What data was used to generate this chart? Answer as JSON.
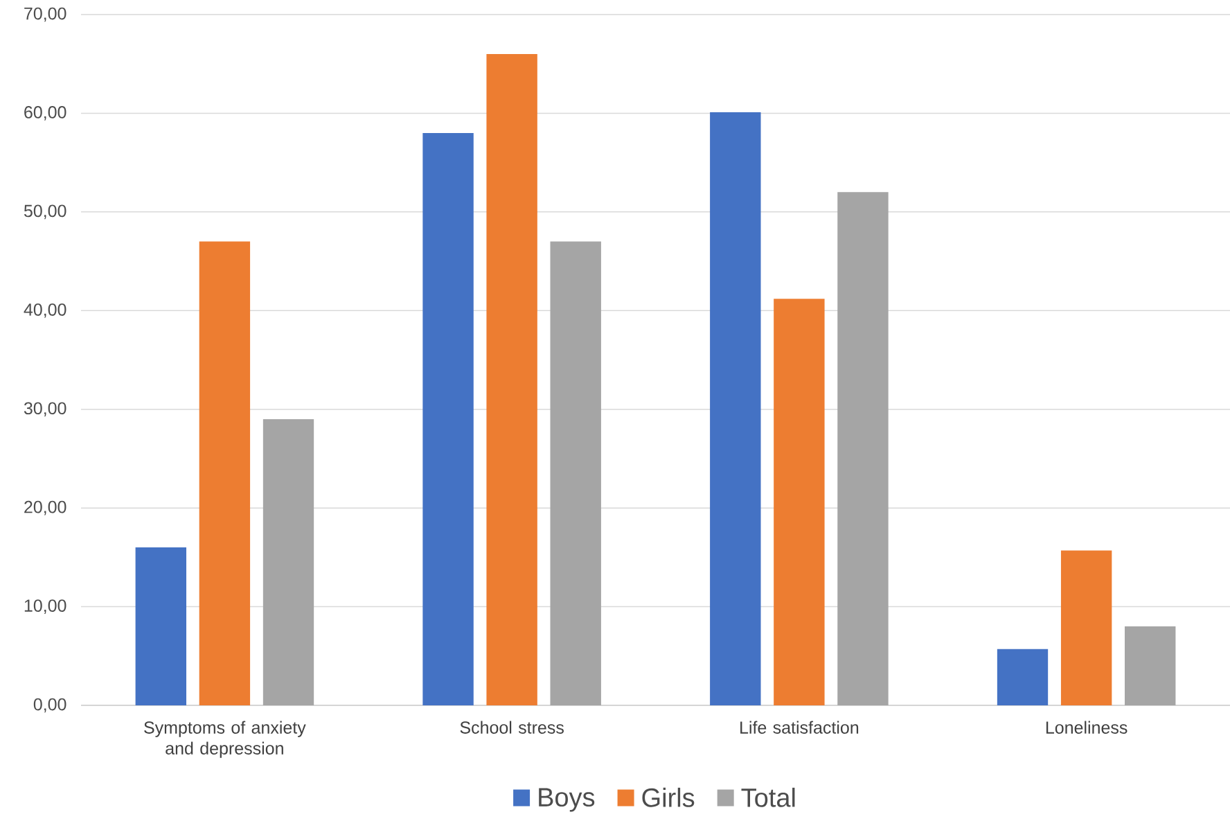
{
  "chart_data": {
    "type": "bar",
    "categories": [
      "Symptoms of anxiety and depression",
      "School stress",
      "Life satisfaction",
      "Loneliness"
    ],
    "series": [
      {
        "name": "Boys",
        "color": "#4472c4",
        "values": [
          16,
          58,
          60.1,
          5.7
        ]
      },
      {
        "name": "Girls",
        "color": "#ed7d31",
        "values": [
          47,
          66,
          41.2,
          15.7
        ]
      },
      {
        "name": "Total",
        "color": "#a5a5a5",
        "values": [
          29,
          47,
          52,
          8
        ]
      }
    ],
    "ylim": [
      0,
      70
    ],
    "yticks": [
      {
        "value": 0,
        "label": "0,00"
      },
      {
        "value": 10,
        "label": "10,00"
      },
      {
        "value": 20,
        "label": "20,00"
      },
      {
        "value": 30,
        "label": "30,00"
      },
      {
        "value": 40,
        "label": "40,00"
      },
      {
        "value": 50,
        "label": "50,00"
      },
      {
        "value": 60,
        "label": "60,00"
      },
      {
        "value": 70,
        "label": "70,00"
      }
    ],
    "grid": "y",
    "legend": "bottom"
  }
}
